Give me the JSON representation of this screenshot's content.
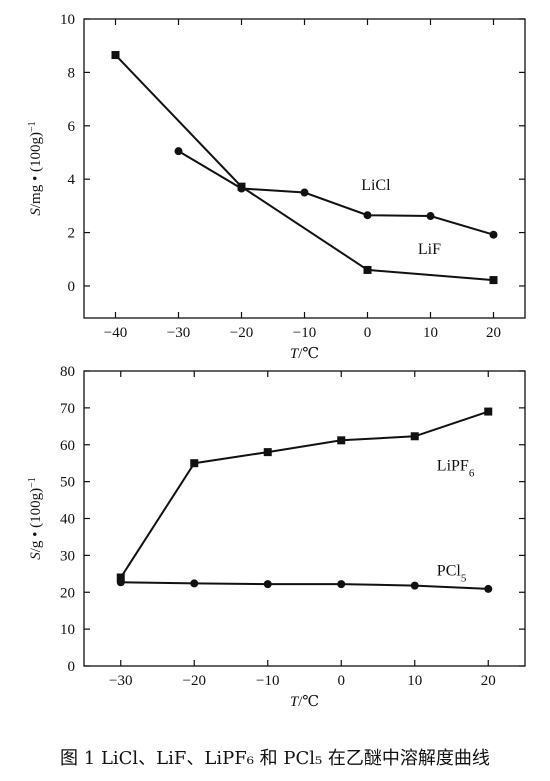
{
  "chart_data": [
    {
      "type": "line",
      "xlabel_italic": "T",
      "xlabel_rest": "/℃",
      "ylabel_italic": "S",
      "ylabel_rest": "/mg • (100g)",
      "ylabel_sup": "−1",
      "xlim": [
        -45,
        25
      ],
      "ylim": [
        -1.2,
        10
      ],
      "xticks": [
        -40,
        -30,
        -20,
        -10,
        0,
        10,
        20
      ],
      "xtick_labels": [
        "−40",
        "−30",
        "−20",
        "−10",
        "0",
        "10",
        "20"
      ],
      "yticks": [
        0,
        2,
        4,
        6,
        8,
        10
      ],
      "ytick_labels": [
        "0",
        "2",
        "4",
        "6",
        "8",
        "10"
      ],
      "grid": false,
      "series": [
        {
          "name": "LiCl",
          "name_sub": "",
          "marker": "circle",
          "x": [
            -30,
            -20,
            -10,
            0,
            10,
            20
          ],
          "y": [
            5.05,
            3.65,
            3.5,
            2.65,
            2.62,
            1.92
          ],
          "label_x": -1,
          "label_y": 3.6
        },
        {
          "name": "LiF",
          "name_sub": "",
          "marker": "square",
          "x": [
            -40,
            -20,
            0,
            20
          ],
          "y": [
            8.65,
            3.72,
            0.6,
            0.22
          ],
          "label_x": 8,
          "label_y": 1.2
        }
      ]
    },
    {
      "type": "line",
      "xlabel_italic": "T",
      "xlabel_rest": "/℃",
      "ylabel_italic": "S",
      "ylabel_rest": "/g • (100g)",
      "ylabel_sup": "−1",
      "xlim": [
        -35,
        25
      ],
      "ylim": [
        0,
        80
      ],
      "xticks": [
        -30,
        -20,
        -10,
        0,
        10,
        20
      ],
      "xtick_labels": [
        "−30",
        "−20",
        "−10",
        "0",
        "10",
        "20"
      ],
      "yticks": [
        0,
        10,
        20,
        30,
        40,
        50,
        60,
        70,
        80
      ],
      "ytick_labels": [
        "0",
        "10",
        "20",
        "30",
        "40",
        "50",
        "60",
        "70",
        "80"
      ],
      "grid": false,
      "series": [
        {
          "name": "LiPF",
          "name_sub": "6",
          "marker": "square",
          "x": [
            -30,
            -20,
            -10,
            0,
            10,
            20
          ],
          "y": [
            24,
            55,
            58,
            61.2,
            62.3,
            69
          ],
          "label_x": 13,
          "label_y": 53
        },
        {
          "name": "PCl",
          "name_sub": "5",
          "marker": "circle",
          "x": [
            -30,
            -20,
            -10,
            0,
            10,
            20
          ],
          "y": [
            22.7,
            22.4,
            22.2,
            22.2,
            21.8,
            20.9
          ],
          "label_x": 13,
          "label_y": 24.5
        }
      ]
    }
  ],
  "caption": "图 1   LiCl、LiF、LiPF₆ 和 PCl₅ 在乙醚中溶解度曲线"
}
